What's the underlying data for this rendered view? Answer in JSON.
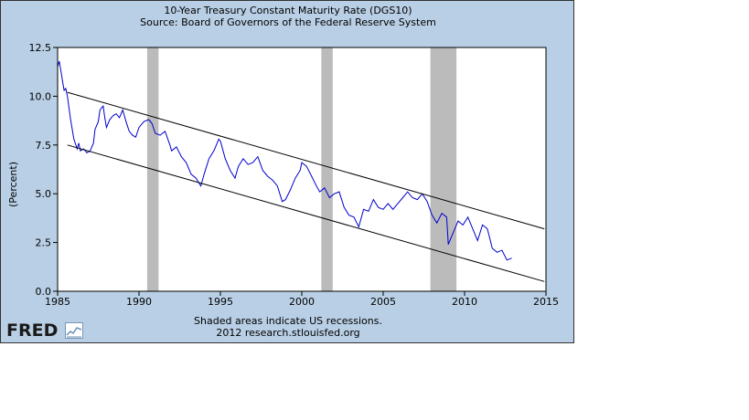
{
  "chart_data": {
    "type": "line",
    "title": "10-Year Treasury Constant Maturity Rate (DGS10)",
    "subtitle": "Source: Board of Governors of the Federal Reserve System",
    "xlabel": "",
    "ylabel": "(Percent)",
    "xlim": [
      1985,
      2015
    ],
    "ylim": [
      0.0,
      12.5
    ],
    "x_ticks": [
      "1985",
      "1990",
      "1995",
      "2000",
      "2005",
      "2010",
      "2015"
    ],
    "y_ticks": [
      "0.0",
      "2.5",
      "5.0",
      "7.5",
      "10.0",
      "12.5"
    ],
    "grid": false,
    "series": [
      {
        "color": "#0000cc",
        "x": [
          1985.0,
          1985.1,
          1985.2,
          1985.3,
          1985.4,
          1985.5,
          1985.6,
          1985.8,
          1986.0,
          1986.2,
          1986.3,
          1986.4,
          1986.6,
          1986.8,
          1987.0,
          1987.2,
          1987.3,
          1987.5,
          1987.6,
          1987.8,
          1987.9,
          1988.0,
          1988.2,
          1988.4,
          1988.6,
          1988.8,
          1989.0,
          1989.2,
          1989.4,
          1989.6,
          1989.8,
          1990.0,
          1990.3,
          1990.6,
          1990.8,
          1991.0,
          1991.3,
          1991.6,
          1991.9,
          1992.0,
          1992.3,
          1992.6,
          1992.9,
          1993.2,
          1993.5,
          1993.8,
          1994.0,
          1994.3,
          1994.6,
          1994.9,
          1995.0,
          1995.3,
          1995.6,
          1995.9,
          1996.1,
          1996.4,
          1996.7,
          1997.0,
          1997.3,
          1997.6,
          1997.9,
          1998.2,
          1998.5,
          1998.8,
          1999.0,
          1999.3,
          1999.6,
          1999.9,
          2000.0,
          2000.3,
          2000.6,
          2000.9,
          2001.1,
          2001.4,
          2001.7,
          2002.0,
          2002.3,
          2002.6,
          2002.9,
          2003.2,
          2003.5,
          2003.8,
          2004.1,
          2004.4,
          2004.7,
          2005.0,
          2005.3,
          2005.6,
          2005.9,
          2006.2,
          2006.5,
          2006.8,
          2007.1,
          2007.4,
          2007.7,
          2008.0,
          2008.3,
          2008.6,
          2008.9,
          2009.0,
          2009.3,
          2009.6,
          2009.9,
          2010.2,
          2010.5,
          2010.8,
          2011.1,
          2011.4,
          2011.7,
          2012.0,
          2012.3,
          2012.6,
          2012.9
        ],
        "values": [
          11.5,
          11.8,
          11.3,
          10.8,
          10.3,
          10.4,
          10.0,
          8.8,
          7.8,
          7.3,
          7.6,
          7.2,
          7.3,
          7.1,
          7.2,
          7.6,
          8.3,
          8.7,
          9.3,
          9.5,
          8.9,
          8.4,
          8.8,
          9.0,
          9.1,
          8.9,
          9.3,
          8.7,
          8.2,
          8.0,
          7.9,
          8.4,
          8.7,
          8.8,
          8.6,
          8.1,
          8.0,
          8.2,
          7.5,
          7.2,
          7.4,
          6.9,
          6.6,
          6.0,
          5.8,
          5.4,
          6.0,
          6.8,
          7.2,
          7.8,
          7.7,
          6.8,
          6.2,
          5.8,
          6.4,
          6.8,
          6.5,
          6.6,
          6.9,
          6.2,
          5.9,
          5.7,
          5.4,
          4.6,
          4.7,
          5.2,
          5.8,
          6.2,
          6.6,
          6.4,
          5.9,
          5.4,
          5.1,
          5.3,
          4.8,
          5.0,
          5.1,
          4.3,
          3.9,
          3.8,
          3.3,
          4.2,
          4.1,
          4.7,
          4.3,
          4.2,
          4.5,
          4.2,
          4.5,
          4.8,
          5.1,
          4.8,
          4.7,
          5.0,
          4.6,
          3.9,
          3.5,
          4.0,
          3.8,
          2.4,
          3.0,
          3.6,
          3.4,
          3.8,
          3.2,
          2.6,
          3.4,
          3.2,
          2.2,
          2.0,
          2.1,
          1.6,
          1.7
        ]
      },
      {
        "color": "#000000",
        "x": [
          1985.6,
          2014.9
        ],
        "values": [
          10.2,
          3.2
        ]
      },
      {
        "color": "#000000",
        "x": [
          1985.6,
          2014.9
        ],
        "values": [
          7.5,
          0.5
        ]
      }
    ],
    "recessions": [
      {
        "start": 1990.5,
        "end": 1991.2
      },
      {
        "start": 2001.2,
        "end": 2001.9
      },
      {
        "start": 2007.9,
        "end": 2009.5
      }
    ],
    "recession_color": "#bbbbbb",
    "annotations": [
      "Shaded areas indicate US recessions.",
      "2012 research.stlouisfed.org"
    ]
  },
  "header": {
    "title": "10-Year Treasury Constant Maturity Rate (DGS10)",
    "subtitle": "Source: Board of Governors of the Federal Reserve System"
  },
  "footer": {
    "note": "Shaded areas indicate US recessions.",
    "credit": "2012 research.stlouisfed.org",
    "logo_text": "FRED"
  }
}
